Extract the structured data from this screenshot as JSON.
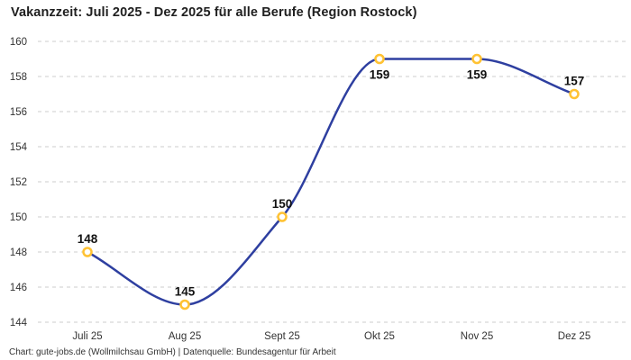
{
  "chart_data": {
    "type": "line",
    "title": "Vakanzzeit: Juli 2025 - Dez 2025 für alle Berufe (Region Rostock)",
    "source": "Chart: gute-jobs.de (Wollmilchsau GmbH) | Datenquelle: Bundesagentur für Arbeit",
    "categories": [
      "Juli 25",
      "Aug 25",
      "Sept 25",
      "Okt 25",
      "Nov 25",
      "Dez 25"
    ],
    "values": [
      148,
      145,
      150,
      159,
      159,
      157
    ],
    "xlabel": "",
    "ylabel": "",
    "ylim": [
      144,
      160
    ],
    "ytick_step": 2,
    "yticks": [
      144,
      146,
      148,
      150,
      152,
      154,
      156,
      158,
      160
    ],
    "grid": "horizontal-dashed",
    "legend": "none",
    "line_color": "#2e3fa0",
    "marker_color": "#ffc233",
    "marker_fill": "#ffffff",
    "grid_color": "#cdcdcd",
    "axis_text_color": "#333333",
    "label_color": "#111111"
  }
}
